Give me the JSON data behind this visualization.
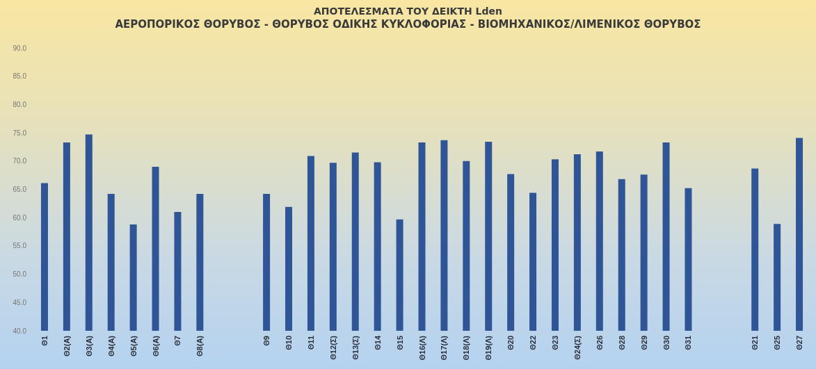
{
  "chart_data": {
    "type": "bar",
    "title": "ΑΠΟΤΕΛΕΣΜΑΤΑ ΤΟΥ ΔΕΙΚΤΗ Lden",
    "subtitle": "ΑΕΡΟΠΟΡΙΚΟΣ ΘΟΡΥΒΟΣ - ΘΟΡΥΒΟΣ ΟΔΙΚΗΣ ΚΥΚΛΟΦΟΡΙΑΣ - ΒΙΟΜΗΧΑΝΙΚΟΣ/ΛΙΜΕΝΙΚΟΣ ΘΟΡΥΒΟΣ",
    "categories": [
      "Θ1",
      "Θ2(Α)",
      "Θ3(Α)",
      "Θ4(Α)",
      "Θ5(Α)",
      "Θ6(Α)",
      "Θ7",
      "Θ8(Α)",
      null,
      null,
      "Θ9",
      "Θ10",
      "Θ11",
      "Θ12(Σ)",
      "Θ13(Σ)",
      "Θ14",
      "Θ15",
      "Θ16(Λ)",
      "Θ17(Λ)",
      "Θ18(Λ)",
      "Θ19(Λ)",
      "Θ20",
      "Θ22",
      "Θ23",
      "Θ24(Σ)",
      "Θ26",
      "Θ28",
      "Θ29",
      "Θ30",
      "Θ31",
      null,
      null,
      "Θ21",
      "Θ25",
      "Θ27"
    ],
    "values": [
      66.1,
      73.3,
      74.7,
      64.2,
      58.8,
      69.0,
      61.0,
      64.2,
      null,
      null,
      64.2,
      61.9,
      70.9,
      69.7,
      71.5,
      69.8,
      59.7,
      73.3,
      73.7,
      70.0,
      73.4,
      67.7,
      64.4,
      70.3,
      71.2,
      71.7,
      66.8,
      67.6,
      73.3,
      65.2,
      null,
      null,
      68.7,
      58.9,
      74.1
    ],
    "color": "#2f5597",
    "ylim": [
      40,
      90
    ],
    "yticks": [
      {
        "value": 40,
        "label": "40.0"
      },
      {
        "value": 45,
        "label": "45.0"
      },
      {
        "value": 50,
        "label": "50.0"
      },
      {
        "value": 55,
        "label": "55.0"
      },
      {
        "value": 60,
        "label": "60.0"
      },
      {
        "value": 65,
        "label": "65.0"
      },
      {
        "value": 70,
        "label": "70.0"
      },
      {
        "value": 75,
        "label": "75.0"
      },
      {
        "value": 80,
        "label": "80.0"
      },
      {
        "value": 85,
        "label": "85.0"
      },
      {
        "value": 90,
        "label": "90.0"
      }
    ]
  }
}
